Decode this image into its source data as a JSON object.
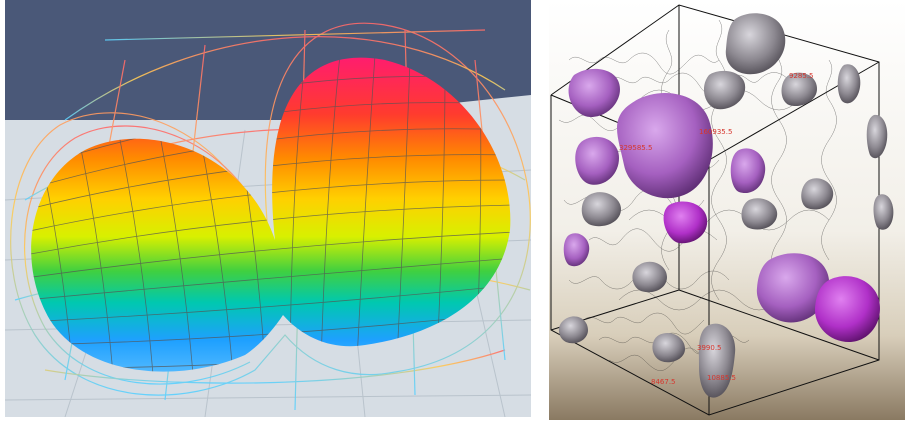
{
  "left_view": {
    "colors": {
      "sky": "#4a5878",
      "floor": "#d6dde4",
      "grid_line": "#b9c3cc",
      "surface_mesh": "#555555"
    },
    "gradient_colors": [
      "#ff1d6e",
      "#ff3b2e",
      "#ff8a00",
      "#ffd000",
      "#d8f000",
      "#40d040",
      "#00c8b0",
      "#1ea0ff",
      "#4fb8ff"
    ]
  },
  "right_view": {
    "colors": {
      "background_top": "#ffffff",
      "background_bottom": "#8a7a62",
      "blob_gray": "#8c8890",
      "blob_purple": "#a560c0",
      "blob_magenta": "#b030c8",
      "text_red": "#d6362e"
    },
    "labels": [
      {
        "id": "l1",
        "text": "329585.5"
      },
      {
        "id": "l2",
        "text": "160935.5"
      },
      {
        "id": "l3",
        "text": "8467.5"
      },
      {
        "id": "l4",
        "text": "10885.5"
      },
      {
        "id": "l5",
        "text": "3990.5"
      },
      {
        "id": "l6",
        "text": "9285.5"
      }
    ]
  }
}
